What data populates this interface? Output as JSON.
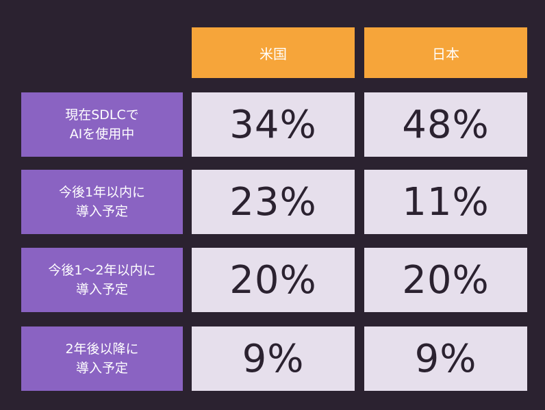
{
  "chart_data": {
    "type": "table",
    "columns": [
      "米国",
      "日本"
    ],
    "rows": [
      {
        "label": "現在SDLCで\nAIを使用中",
        "values": [
          "34%",
          "48%"
        ]
      },
      {
        "label": "今後1年以内に\n導入予定",
        "values": [
          "23%",
          "11%"
        ]
      },
      {
        "label": "今後1〜2年以内に\n導入予定",
        "values": [
          "20%",
          "20%"
        ]
      },
      {
        "label": "2年後以降に\n導入予定",
        "values": [
          "9%",
          "9%"
        ]
      }
    ]
  },
  "colors": {
    "background": "#2b2230",
    "column_header": "#f6a53a",
    "row_header": "#8a63c2",
    "value_cell": "#e6dfec",
    "value_text": "#2b2230"
  }
}
